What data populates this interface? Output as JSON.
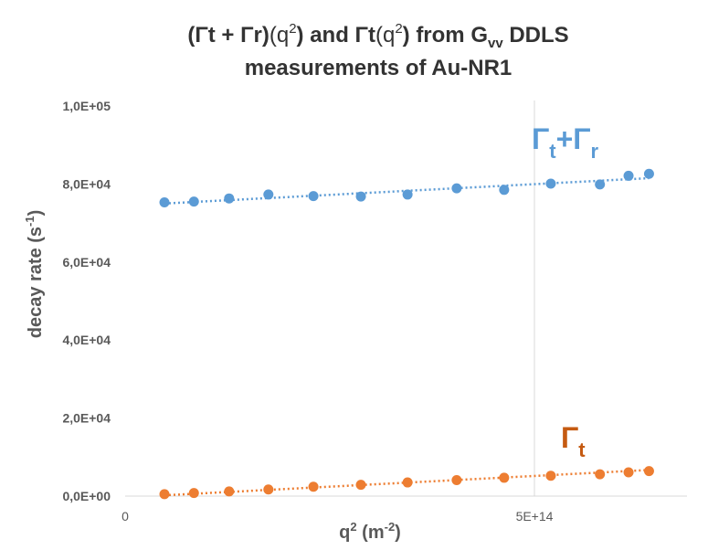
{
  "chart_data": {
    "type": "scatter",
    "title": {
      "line1_a": "(Γt + Γr)",
      "line1_b": "(q",
      "line1_c": "2",
      "line1_d": ")  and ",
      "line1_e": "Γt",
      "line1_f": "(q",
      "line1_g": "2",
      "line1_h": ")   from G",
      "line1_i": "vv",
      "line1_j": " DDLS",
      "line2": "measurements of Au-NR1"
    },
    "xlabel": {
      "base": "q",
      "sup1": "2",
      "mid": " (m",
      "sup2": "-2",
      "end": ")"
    },
    "ylabel": {
      "base": "decay rate  (s",
      "sup": "-1",
      "end": ")"
    },
    "xlim": [
      0,
      700000000000000.0
    ],
    "ylim": [
      0,
      110000
    ],
    "x_ticks": [
      {
        "value": 0,
        "label": "0"
      },
      {
        "value": 500000000000000.0,
        "label": "5E+14"
      }
    ],
    "y_ticks": [
      {
        "value": 0,
        "label": "0,0E+00"
      },
      {
        "value": 20000,
        "label": "2,0E+04"
      },
      {
        "value": 40000,
        "label": "4,0E+04"
      },
      {
        "value": 60000,
        "label": "6,0E+04"
      },
      {
        "value": 80000,
        "label": "8,0E+04"
      },
      {
        "value": 100000,
        "label": "1,0E+05"
      }
    ],
    "grid": {
      "vertical_at_x": 500000000000000.0
    },
    "series": [
      {
        "color": "#5b9bd5",
        "x": [
          48000000000000.0,
          84000000000000.0,
          127000000000000.0,
          175000000000000.0,
          230000000000000.0,
          288000000000000.0,
          345000000000000.0,
          405000000000000.0,
          463000000000000.0,
          520000000000000.0,
          580000000000000.0,
          615000000000000.0,
          640000000000000.0
        ],
        "y": [
          75300,
          75500,
          76300,
          77300,
          76900,
          76800,
          77300,
          78900,
          78500,
          80100,
          79900,
          82100,
          82600
        ],
        "trend": [
          75000,
          81500
        ]
      },
      {
        "color": "#ed7d31",
        "x": [
          48000000000000.0,
          84000000000000.0,
          127000000000000.0,
          175000000000000.0,
          230000000000000.0,
          288000000000000.0,
          345000000000000.0,
          405000000000000.0,
          463000000000000.0,
          520000000000000.0,
          580000000000000.0,
          615000000000000.0,
          640000000000000.0
        ],
        "y": [
          500,
          800,
          1200,
          1700,
          2400,
          2900,
          3500,
          4100,
          4700,
          5200,
          5600,
          6100,
          6400
        ],
        "trend": [
          200,
          6700
        ]
      }
    ],
    "annotations": [
      {
        "base1": "Γ",
        "sub1": "t",
        "plus": "+",
        "base2": "Γ",
        "sub2": "r",
        "color": "#5b9bd5"
      },
      {
        "base1": "Γ",
        "sub1": "t",
        "color": "#c55a11"
      }
    ]
  }
}
